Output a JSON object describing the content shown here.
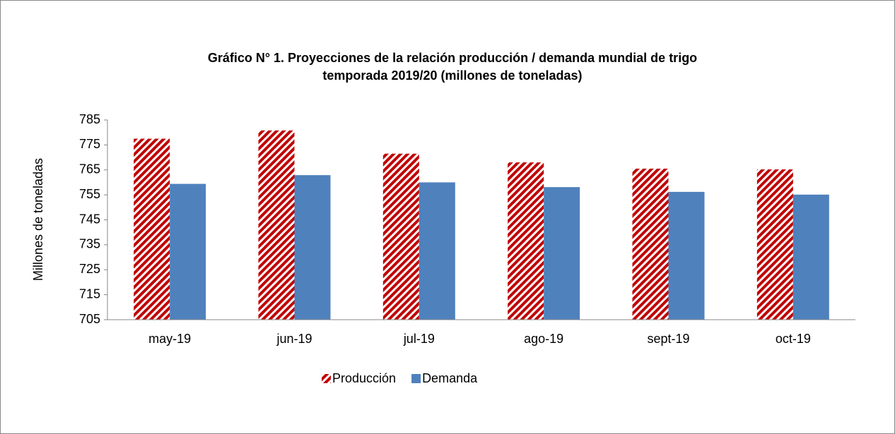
{
  "chart_data": {
    "type": "bar",
    "title": "Gráfico N° 1. Proyecciones de la relación producción / demanda mundial de trigo",
    "subtitle": "temporada 2019/20  (millones de toneladas)",
    "y_label": "Millones de toneladas",
    "categories": [
      "may-19",
      "jun-19",
      "jul-19",
      "ago-19",
      "sept-19",
      "oct-19"
    ],
    "series": [
      {
        "name": "Producción",
        "color": "#c00000",
        "pattern": "diagonal",
        "values": [
          777.5,
          780.8,
          771.5,
          768.0,
          765.5,
          765.2
        ]
      },
      {
        "name": "Demanda",
        "color": "#4f81bd",
        "values": [
          759.4,
          762.9,
          760.0,
          758.1,
          756.2,
          755.1
        ]
      }
    ],
    "ylim": [
      705,
      785
    ],
    "yticks": [
      705,
      715,
      725,
      735,
      745,
      755,
      765,
      775,
      785
    ],
    "grid": false,
    "legend": "bottom"
  }
}
